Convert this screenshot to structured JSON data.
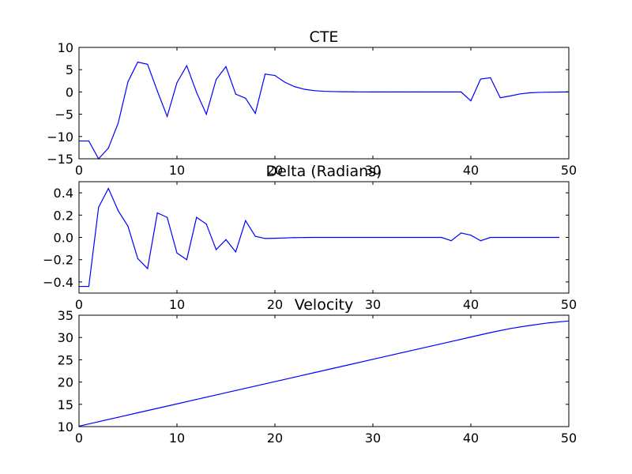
{
  "chart_data": [
    {
      "type": "line",
      "title": "CTE",
      "xlabel": "",
      "ylabel": "",
      "xlim": [
        0,
        50
      ],
      "ylim": [
        -15,
        10
      ],
      "xticks": [
        0,
        10,
        20,
        30,
        40,
        50
      ],
      "yticks": [
        10,
        5,
        0,
        -5,
        -10,
        -15
      ],
      "xtick_labels": [
        "0",
        "10",
        "20",
        "30",
        "40",
        "50"
      ],
      "ytick_labels": [
        "10",
        "5",
        "0",
        "−5",
        "−10",
        "−15"
      ],
      "grid": false,
      "color": "#0000ff",
      "series": [
        {
          "x": [
            0,
            1,
            2,
            3,
            4,
            5,
            6,
            7,
            8,
            9,
            10,
            11,
            12,
            13,
            14,
            15,
            16,
            17,
            18,
            19,
            20,
            21,
            22,
            23,
            24,
            25,
            26,
            27,
            28,
            29,
            30,
            31,
            32,
            33,
            34,
            35,
            36,
            37,
            38,
            39,
            40,
            41,
            42,
            43,
            44,
            45,
            46,
            47,
            48,
            49,
            50
          ],
          "values": [
            -11,
            -11,
            -15,
            -12.6,
            -7,
            2.3,
            6.7,
            6.2,
            0.2,
            -5.5,
            2.1,
            5.9,
            -0.1,
            -5,
            2.8,
            5.7,
            -0.5,
            -1.4,
            -4.8,
            4,
            3.7,
            2.2,
            1.2,
            0.6,
            0.3,
            0.15,
            0.08,
            0.05,
            0.03,
            0.02,
            0.01,
            0,
            0,
            0,
            0,
            0,
            0,
            0,
            0,
            0,
            -2,
            2.9,
            3.2,
            -1.3,
            -0.9,
            -0.45,
            -0.2,
            -0.1,
            -0.05,
            -0.02,
            0
          ]
        }
      ]
    },
    {
      "type": "line",
      "title": "Delta (Radians)",
      "xlabel": "",
      "ylabel": "",
      "xlim": [
        0,
        50
      ],
      "ylim": [
        -0.5,
        0.5
      ],
      "xticks": [
        0,
        10,
        20,
        30,
        40,
        50
      ],
      "yticks": [
        0.4,
        0.2,
        0.0,
        -0.2,
        -0.4
      ],
      "xtick_labels": [
        "0",
        "10",
        "20",
        "30",
        "40",
        "50"
      ],
      "ytick_labels": [
        "0.4",
        "0.2",
        "0.0",
        "−0.2",
        "−0.4"
      ],
      "grid": false,
      "color": "#0000ff",
      "series": [
        {
          "x": [
            0,
            1,
            2,
            3,
            4,
            5,
            6,
            7,
            8,
            9,
            10,
            11,
            12,
            13,
            14,
            15,
            16,
            17,
            18,
            19,
            20,
            21,
            22,
            23,
            24,
            25,
            26,
            27,
            28,
            29,
            30,
            31,
            32,
            33,
            34,
            35,
            36,
            37,
            38,
            39,
            40,
            41,
            42,
            43,
            44,
            45,
            46,
            47,
            48,
            49
          ],
          "values": [
            -0.44,
            -0.44,
            0.27,
            0.44,
            0.24,
            0.1,
            -0.19,
            -0.28,
            0.22,
            0.18,
            -0.14,
            -0.2,
            0.18,
            0.12,
            -0.11,
            -0.02,
            -0.13,
            0.15,
            0.01,
            -0.01,
            -0.008,
            -0.005,
            -0.002,
            -0.001,
            0,
            0,
            0,
            0,
            0,
            0,
            0,
            0,
            0,
            0,
            0,
            0,
            0,
            0,
            -0.03,
            0.04,
            0.02,
            -0.03,
            0,
            0,
            0,
            0,
            0,
            0,
            0,
            0
          ]
        }
      ]
    },
    {
      "type": "line",
      "title": "Velocity",
      "xlabel": "",
      "ylabel": "",
      "xlim": [
        0,
        50
      ],
      "ylim": [
        10,
        35
      ],
      "xticks": [
        0,
        10,
        20,
        30,
        40,
        50
      ],
      "yticks": [
        35,
        30,
        25,
        20,
        15,
        10
      ],
      "xtick_labels": [
        "0",
        "10",
        "20",
        "30",
        "40",
        "50"
      ],
      "ytick_labels": [
        "35",
        "30",
        "25",
        "20",
        "15",
        "10"
      ],
      "grid": false,
      "color": "#0000ff",
      "series": [
        {
          "x": [
            0,
            2,
            4,
            6,
            8,
            10,
            12,
            14,
            16,
            18,
            20,
            22,
            24,
            26,
            28,
            30,
            32,
            34,
            36,
            38,
            40,
            42,
            44,
            46,
            48,
            50
          ],
          "values": [
            10.1,
            11.1,
            12.1,
            13.1,
            14.1,
            15.1,
            16.1,
            17.1,
            18.1,
            19.1,
            20.1,
            21.1,
            22.1,
            23.1,
            24.1,
            25.1,
            26.1,
            27.1,
            28.1,
            29.1,
            30.1,
            31.1,
            32,
            32.7,
            33.3,
            33.7
          ]
        }
      ]
    }
  ]
}
